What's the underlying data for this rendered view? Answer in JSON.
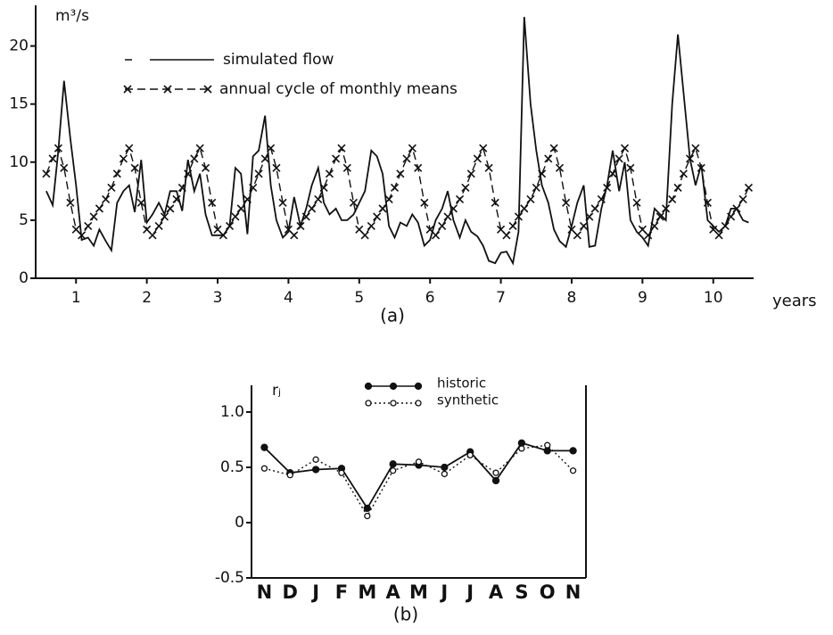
{
  "chart_data": [
    {
      "type": "line",
      "caption": "(a)",
      "x_label": "years",
      "y_label": "m³/s",
      "x": [
        0.58,
        0.67,
        0.75,
        0.83,
        0.92,
        1,
        1.08,
        1.17,
        1.25,
        1.33,
        1.42,
        1.5,
        1.58,
        1.67,
        1.75,
        1.83,
        1.92,
        2,
        2.08,
        2.17,
        2.25,
        2.33,
        2.42,
        2.5,
        2.58,
        2.67,
        2.75,
        2.83,
        2.92,
        3,
        3.08,
        3.17,
        3.25,
        3.33,
        3.42,
        3.5,
        3.58,
        3.67,
        3.75,
        3.83,
        3.92,
        4,
        4.08,
        4.17,
        4.25,
        4.33,
        4.42,
        4.5,
        4.58,
        4.67,
        4.75,
        4.83,
        4.92,
        5,
        5.08,
        5.17,
        5.25,
        5.33,
        5.42,
        5.5,
        5.58,
        5.67,
        5.75,
        5.83,
        5.92,
        6,
        6.08,
        6.17,
        6.25,
        6.33,
        6.42,
        6.5,
        6.58,
        6.67,
        6.75,
        6.83,
        6.92,
        7,
        7.08,
        7.17,
        7.25,
        7.33,
        7.42,
        7.5,
        7.58,
        7.67,
        7.75,
        7.83,
        7.92,
        8,
        8.08,
        8.17,
        8.25,
        8.33,
        8.42,
        8.5,
        8.58,
        8.67,
        8.75,
        8.83,
        8.92,
        9,
        9.08,
        9.17,
        9.25,
        9.33,
        9.42,
        9.5,
        9.58,
        9.67,
        9.75,
        9.83,
        9.92,
        10,
        10.08,
        10.17,
        10.25,
        10.33,
        10.42,
        10.5
      ],
      "xlim": [
        0.43,
        10.57
      ],
      "xticks": [
        1,
        2,
        3,
        4,
        5,
        6,
        7,
        8,
        9,
        10
      ],
      "ylim": [
        0,
        23.5
      ],
      "yticks": [
        0,
        5,
        10,
        15,
        20
      ],
      "series": [
        {
          "name": "simulated flow",
          "color": "#111111",
          "style": "solid",
          "values": [
            7.5,
            6.3,
            11,
            17,
            12,
            8,
            3.3,
            3.5,
            2.8,
            4.2,
            3.2,
            2.4,
            6.5,
            7.5,
            8,
            5.7,
            10.2,
            4.8,
            5.5,
            6.5,
            5.5,
            7.5,
            7.5,
            5.8,
            10.2,
            7.5,
            9,
            5.5,
            3.7,
            3.7,
            3.7,
            4.5,
            9.5,
            9,
            3.8,
            10.5,
            11,
            14,
            8,
            5,
            3.5,
            4,
            7,
            4.5,
            6,
            8,
            9.5,
            6.5,
            5.5,
            6,
            5,
            5,
            5.5,
            6.5,
            7.5,
            11,
            10.5,
            9,
            4.5,
            3.5,
            4.8,
            4.5,
            5.5,
            4.8,
            2.8,
            3.3,
            5,
            6,
            7.5,
            5,
            3.5,
            5,
            4,
            3.6,
            2.8,
            1.5,
            1.3,
            2.2,
            2.3,
            1.3,
            4,
            22.5,
            15,
            11,
            8,
            6.5,
            4.2,
            3.2,
            2.7,
            4.5,
            6.5,
            8,
            2.7,
            2.8,
            6,
            8,
            11,
            7.5,
            10,
            5,
            4,
            3.5,
            2.8,
            6,
            5.5,
            5,
            15,
            21,
            16,
            10.3,
            8,
            9.8,
            5,
            4.5,
            4,
            4.5,
            6,
            6,
            5,
            4.8
          ]
        },
        {
          "name": "annual cycle of monthly means",
          "color": "#111111",
          "style": "dashed",
          "marker": "x",
          "values": [
            9,
            10.3,
            11.2,
            9.5,
            6.5,
            4.2,
            3.7,
            4.5,
            5.3,
            6,
            6.8,
            7.8,
            9,
            10.3,
            11.2,
            9.5,
            6.5,
            4.2,
            3.7,
            4.5,
            5.3,
            6,
            6.8,
            7.8,
            9,
            10.3,
            11.2,
            9.5,
            6.5,
            4.2,
            3.7,
            4.5,
            5.3,
            6,
            6.8,
            7.8,
            9,
            10.3,
            11.2,
            9.5,
            6.5,
            4.2,
            3.7,
            4.5,
            5.3,
            6,
            6.8,
            7.8,
            9,
            10.3,
            11.2,
            9.5,
            6.5,
            4.2,
            3.7,
            4.5,
            5.3,
            6,
            6.8,
            7.8,
            9,
            10.3,
            11.2,
            9.5,
            6.5,
            4.2,
            3.7,
            4.5,
            5.3,
            6,
            6.8,
            7.8,
            9,
            10.3,
            11.2,
            9.5,
            6.5,
            4.2,
            3.7,
            4.5,
            5.3,
            6,
            6.8,
            7.8,
            9,
            10.3,
            11.2,
            9.5,
            6.5,
            4.2,
            3.7,
            4.5,
            5.3,
            6,
            6.8,
            7.8,
            9,
            10.3,
            11.2,
            9.5,
            6.5,
            4.2,
            3.7,
            4.5,
            5.3,
            6,
            6.8,
            7.8,
            9,
            10.3,
            11.2,
            9.5,
            6.5,
            4.2,
            3.7,
            4.5,
            5.3,
            6,
            6.8,
            7.8
          ]
        }
      ]
    },
    {
      "type": "line",
      "caption": "(b)",
      "y_label": "rⱼ",
      "categories": [
        "N",
        "D",
        "J",
        "F",
        "M",
        "A",
        "M",
        "J",
        "J",
        "A",
        "S",
        "O",
        "N"
      ],
      "ylim": [
        -0.5,
        1.0
      ],
      "yticks": [
        {
          "value": 1.0,
          "label": "1.0"
        },
        0.5,
        0,
        -0.5
      ],
      "series": [
        {
          "name": "historic",
          "color": "#111111",
          "style": "solid",
          "marker": "filled",
          "values": [
            0.68,
            0.45,
            0.48,
            0.49,
            0.13,
            0.53,
            0.52,
            0.5,
            0.64,
            0.38,
            0.72,
            0.65,
            0.65
          ]
        },
        {
          "name": "synthetic",
          "color": "#111111",
          "style": "dotted",
          "marker": "open",
          "values": [
            0.49,
            0.43,
            0.57,
            0.45,
            0.06,
            0.47,
            0.55,
            0.44,
            0.61,
            0.45,
            0.67,
            0.7,
            0.47
          ]
        }
      ]
    }
  ]
}
